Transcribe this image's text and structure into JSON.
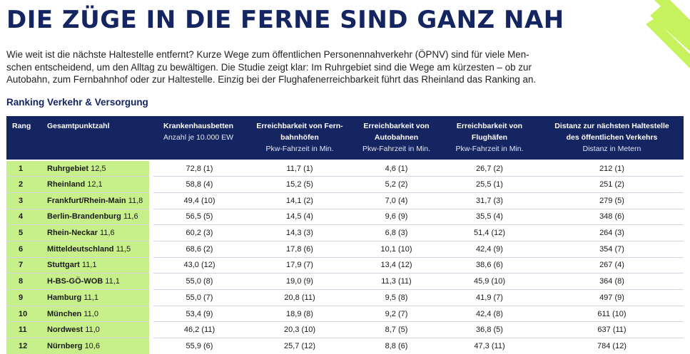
{
  "headline": "DIE ZÜGE IN DIE FERNE SIND GANZ NAH",
  "intro_lines": [
    "Wie weit ist die nächste Haltestelle entfernt? Kurze Wege zum öffentlichen Personennahverkehr (ÖPNV) sind für viele Men-",
    "schen entscheidend, um den Alltag zu bewältigen. Die Studie zeigt klar: Im Ruhrgebiet sind die Wege am kürzesten – ob zur",
    "Autobahn, zum Fernbahnhof oder zur Haltestelle. Einzig bei der Flughafenerreichbarkeit führt das Rheinland das Ranking an."
  ],
  "table_title": "Ranking Verkehr & Versorgung",
  "columns": {
    "rang": "Rang",
    "gesamt": "Gesamtpunktzahl",
    "kranken": {
      "line1": "Krankenhausbetten",
      "unit": "Anzahl je 10.000 EW"
    },
    "fernbahn": {
      "line1": "Erreichbarkeit von Fern-",
      "line2": "bahnhöfen",
      "unit": "Pkw-Fahrzeit in Min."
    },
    "autobahn": {
      "line1": "Erreichbarkeit von",
      "line2": "Autobahnen",
      "unit": "Pkw-Fahrzeit in Min."
    },
    "flughafen": {
      "line1": "Erreichbarkeit von",
      "line2": "Flughäfen",
      "unit": "Pkw-Fahrzeit in Min."
    },
    "distanz": {
      "line1": "Distanz zur nächsten Haltestelle",
      "line2": "des öffentlichen Verkehrs",
      "unit": "Distanz in Metern"
    }
  },
  "rows": [
    {
      "rang": "1",
      "name": "Ruhrgebiet",
      "score": "12,5",
      "kranken": "72,8 (1)",
      "fernbahn": "11,7 (1)",
      "autobahn": "4,6 (1)",
      "flughafen": "26,7 (2)",
      "distanz": "212 (1)"
    },
    {
      "rang": "2",
      "name": "Rheinland",
      "score": "12,1",
      "kranken": "58,8 (4)",
      "fernbahn": "15,2 (5)",
      "autobahn": "5,2 (2)",
      "flughafen": "25,5 (1)",
      "distanz": "251 (2)"
    },
    {
      "rang": "3",
      "name": "Frankfurt/Rhein-Main",
      "score": "11,8",
      "kranken": "49,4 (10)",
      "fernbahn": "14,1 (2)",
      "autobahn": "7,0 (4)",
      "flughafen": "31,7 (3)",
      "distanz": "279 (5)"
    },
    {
      "rang": "4",
      "name": "Berlin-Brandenburg",
      "score": "11,6",
      "kranken": "56,5 (5)",
      "fernbahn": "14,5 (4)",
      "autobahn": "9,6 (9)",
      "flughafen": "35,5 (4)",
      "distanz": "348 (6)"
    },
    {
      "rang": "5",
      "name": "Rhein-Neckar",
      "score": "11,6",
      "kranken": "60,2 (3)",
      "fernbahn": "14,3 (3)",
      "autobahn": "6,8 (3)",
      "flughafen": "51,4 (12)",
      "distanz": "264 (3)"
    },
    {
      "rang": "6",
      "name": "Mitteldeutschland",
      "score": "11,5",
      "kranken": "68,6 (2)",
      "fernbahn": "17,8 (6)",
      "autobahn": "10,1 (10)",
      "flughafen": "42,4 (9)",
      "distanz": "354 (7)"
    },
    {
      "rang": "7",
      "name": "Stuttgart",
      "score": "11,1",
      "kranken": "43,0 (12)",
      "fernbahn": "17,9 (7)",
      "autobahn": "13,4 (12)",
      "flughafen": "38,6 (6)",
      "distanz": "267 (4)"
    },
    {
      "rang": "8",
      "name": "H-BS-GÖ-WOB",
      "score": "11,1",
      "kranken": "55,0 (8)",
      "fernbahn": "19,0 (9)",
      "autobahn": "11,3 (11)",
      "flughafen": "45,9 (10)",
      "distanz": "364 (8)"
    },
    {
      "rang": "9",
      "name": "Hamburg",
      "score": "11,1",
      "kranken": "55,0 (7)",
      "fernbahn": "20,8 (11)",
      "autobahn": "9,5 (8)",
      "flughafen": "41,9 (7)",
      "distanz": "497 (9)"
    },
    {
      "rang": "10",
      "name": "München",
      "score": "11,0",
      "kranken": "53,4 (9)",
      "fernbahn": "18,9 (8)",
      "autobahn": "9,2 (7)",
      "flughafen": "42,4 (8)",
      "distanz": "611 (10)"
    },
    {
      "rang": "11",
      "name": "Nordwest",
      "score": "11,0",
      "kranken": "46,2 (11)",
      "fernbahn": "20,3 (10)",
      "autobahn": "8,7 (5)",
      "flughafen": "36,8 (5)",
      "distanz": "637 (11)"
    },
    {
      "rang": "12",
      "name": "Nürnberg",
      "score": "10,6",
      "kranken": "55,9 (6)",
      "fernbahn": "25,7 (12)",
      "autobahn": "8,8 (6)",
      "flughafen": "47,3 (11)",
      "distanz": "784 (12)"
    }
  ],
  "colors": {
    "navy": "#142561",
    "lime": "#c8f08a",
    "deco_lime": "#c6f25e"
  }
}
